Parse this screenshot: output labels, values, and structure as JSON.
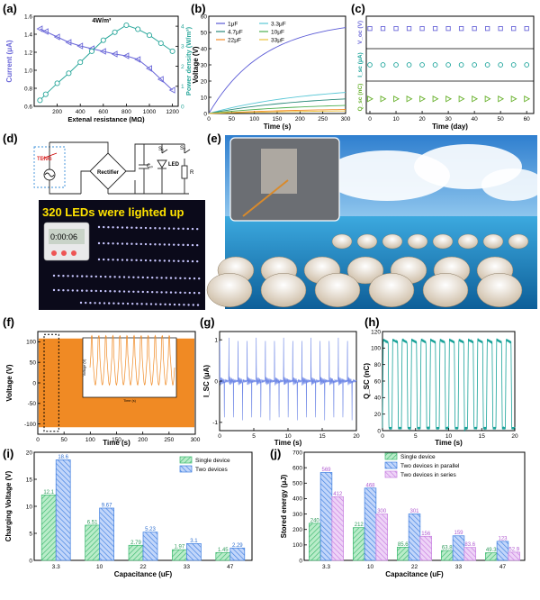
{
  "panels": {
    "a": "(a)",
    "b": "(b)",
    "c": "(c)",
    "d": "(d)",
    "e": "(e)",
    "f": "(f)",
    "g": "(g)",
    "h": "(h)",
    "i": "(i)",
    "j": "(j)"
  },
  "circuit": {
    "teng": "TENG",
    "rectifier": "Rectifier",
    "cap": "Cₚ",
    "led": "LED",
    "s1": "S₁",
    "s2": "S₂",
    "r": "R"
  },
  "photo_d": {
    "caption": "320 LEDs were lighted up",
    "timer": "0:00:06"
  },
  "colors": {
    "current": "#6a67d8",
    "power": "#2aa79b",
    "voltage_f": "#f08a24",
    "current_g": "#6d86e6",
    "charge_h": "#1aa39a",
    "single": "#3cb86f",
    "two": "#3f7fe0",
    "series": "#c77fe0"
  },
  "chart_data": [
    {
      "panel": "a",
      "type": "line",
      "xlabel": "Extenal resistance (MΩ)",
      "ylabel": "Current (μA)",
      "y2label": "Power density (W/m³)",
      "annotation": "4W/m³",
      "xlim": [
        0,
        1250
      ],
      "ylim": [
        0.6,
        1.6
      ],
      "y2lim": [
        0,
        4.5
      ],
      "xticks": [
        200,
        400,
        600,
        800,
        1000,
        1200
      ],
      "yticks": [
        0.6,
        0.8,
        1.0,
        1.2,
        1.4,
        1.6
      ],
      "y2ticks": [
        0,
        1,
        2,
        3,
        4
      ],
      "series": [
        {
          "axis": "left",
          "x": [
            50,
            100,
            200,
            300,
            400,
            500,
            600,
            700,
            800,
            900,
            1000,
            1100,
            1200
          ],
          "y": [
            1.46,
            1.43,
            1.37,
            1.31,
            1.27,
            1.24,
            1.21,
            1.18,
            1.16,
            1.12,
            1.02,
            0.9,
            0.78
          ]
        },
        {
          "axis": "right",
          "x": [
            50,
            100,
            200,
            300,
            400,
            500,
            600,
            700,
            800,
            900,
            1000,
            1100,
            1200
          ],
          "y": [
            0.3,
            0.6,
            1.15,
            1.65,
            2.2,
            2.75,
            3.3,
            3.7,
            4.05,
            3.85,
            3.55,
            3.15,
            2.75
          ]
        }
      ]
    },
    {
      "panel": "b",
      "type": "line",
      "xlabel": "Time (s)",
      "ylabel": "Voltage (V)",
      "xlim": [
        0,
        300
      ],
      "ylim": [
        0,
        60
      ],
      "xticks": [
        0,
        50,
        100,
        150,
        200,
        250,
        300
      ],
      "yticks": [
        0,
        10,
        20,
        30,
        40,
        50,
        60
      ],
      "series": [
        {
          "name": "1μF",
          "color": "#5b5bd6",
          "final": 53
        },
        {
          "name": "3.3μF",
          "color": "#59c7d6",
          "final": 13
        },
        {
          "name": "4.7μF",
          "color": "#2a8a7a",
          "final": 9
        },
        {
          "name": "10μF",
          "color": "#4caf50",
          "final": 5
        },
        {
          "name": "22μF",
          "color": "#f28c28",
          "final": 2.5
        },
        {
          "name": "33μF",
          "color": "#e8c13a",
          "final": 1.6
        }
      ]
    },
    {
      "panel": "c",
      "type": "scatter",
      "xlabel": "Time (day)",
      "xticks": [
        0,
        10,
        20,
        30,
        40,
        50,
        60
      ],
      "x": [
        0,
        5,
        10,
        15,
        20,
        25,
        30,
        35,
        40,
        45,
        50,
        55,
        60
      ],
      "rows": [
        {
          "ylabel": "V_oc (V)",
          "color": "#6a67d8",
          "level": 0.62
        },
        {
          "ylabel": "I_sc (μA)",
          "color": "#1aa39a",
          "level": 0.5
        },
        {
          "ylabel": "Q_sc (nC)",
          "color": "#6ab22f",
          "level": 0.45
        }
      ]
    },
    {
      "panel": "f",
      "type": "line",
      "xlabel": "Time (s)",
      "ylabel": "Voltage (V)",
      "xlim": [
        0,
        300
      ],
      "ylim": [
        -125,
        125
      ],
      "xticks": [
        0,
        50,
        100,
        150,
        200,
        250,
        300
      ],
      "yticks": [
        -100,
        -50,
        0,
        50,
        100
      ],
      "amplitude": 108,
      "inset": {
        "xlabel": "Time (s)",
        "ylabel": "Voltage (V)",
        "xticks": [
          0,
          2,
          4,
          6,
          8,
          10,
          12,
          14,
          16,
          18,
          20
        ]
      }
    },
    {
      "panel": "g",
      "type": "line",
      "xlabel": "Time (s)",
      "ylabel": "I_SC (μA)",
      "xlim": [
        0,
        20
      ],
      "ylim": [
        -1.2,
        1.2
      ],
      "xticks": [
        0,
        5,
        10,
        15,
        20
      ],
      "yticks": [
        -1,
        0,
        1
      ],
      "peaks": 15
    },
    {
      "panel": "h",
      "type": "line",
      "xlabel": "Time (s)",
      "ylabel": "Q_SC (nC)",
      "xlim": [
        0,
        20
      ],
      "ylim": [
        0,
        120
      ],
      "xticks": [
        0,
        5,
        10,
        15,
        20
      ],
      "yticks": [
        0,
        20,
        40,
        60,
        80,
        100,
        120
      ],
      "pulses": 14
    },
    {
      "panel": "i",
      "type": "bar",
      "xlabel": "Capacitance (uF)",
      "ylabel": "Charging Voltage (V)",
      "categories": [
        "3.3",
        "10",
        "22",
        "33",
        "47"
      ],
      "ylim": [
        0,
        20
      ],
      "yticks": [
        0,
        5,
        10,
        15,
        20
      ],
      "series": [
        {
          "name": "Single device",
          "values": [
            12.1,
            6.51,
            2.79,
            1.97,
            1.45
          ]
        },
        {
          "name": "Two devices",
          "values": [
            18.6,
            9.67,
            5.23,
            3.1,
            2.29
          ]
        }
      ]
    },
    {
      "panel": "j",
      "type": "bar",
      "xlabel": "Capacitance (uF)",
      "ylabel": "Stored energy (μJ)",
      "categories": [
        "3.3",
        "10",
        "22",
        "33",
        "47"
      ],
      "ylim": [
        0,
        700
      ],
      "yticks": [
        0,
        100,
        200,
        300,
        400,
        500,
        600,
        700
      ],
      "series": [
        {
          "name": "Single device",
          "values": [
            240,
            212,
            85.6,
            63.8,
            49.3
          ]
        },
        {
          "name": "Two devices in parallel",
          "values": [
            569,
            468,
            301,
            159,
            123
          ]
        },
        {
          "name": "Two devices in series",
          "values": [
            412,
            300,
            156,
            83.6,
            52.9
          ]
        }
      ]
    }
  ]
}
